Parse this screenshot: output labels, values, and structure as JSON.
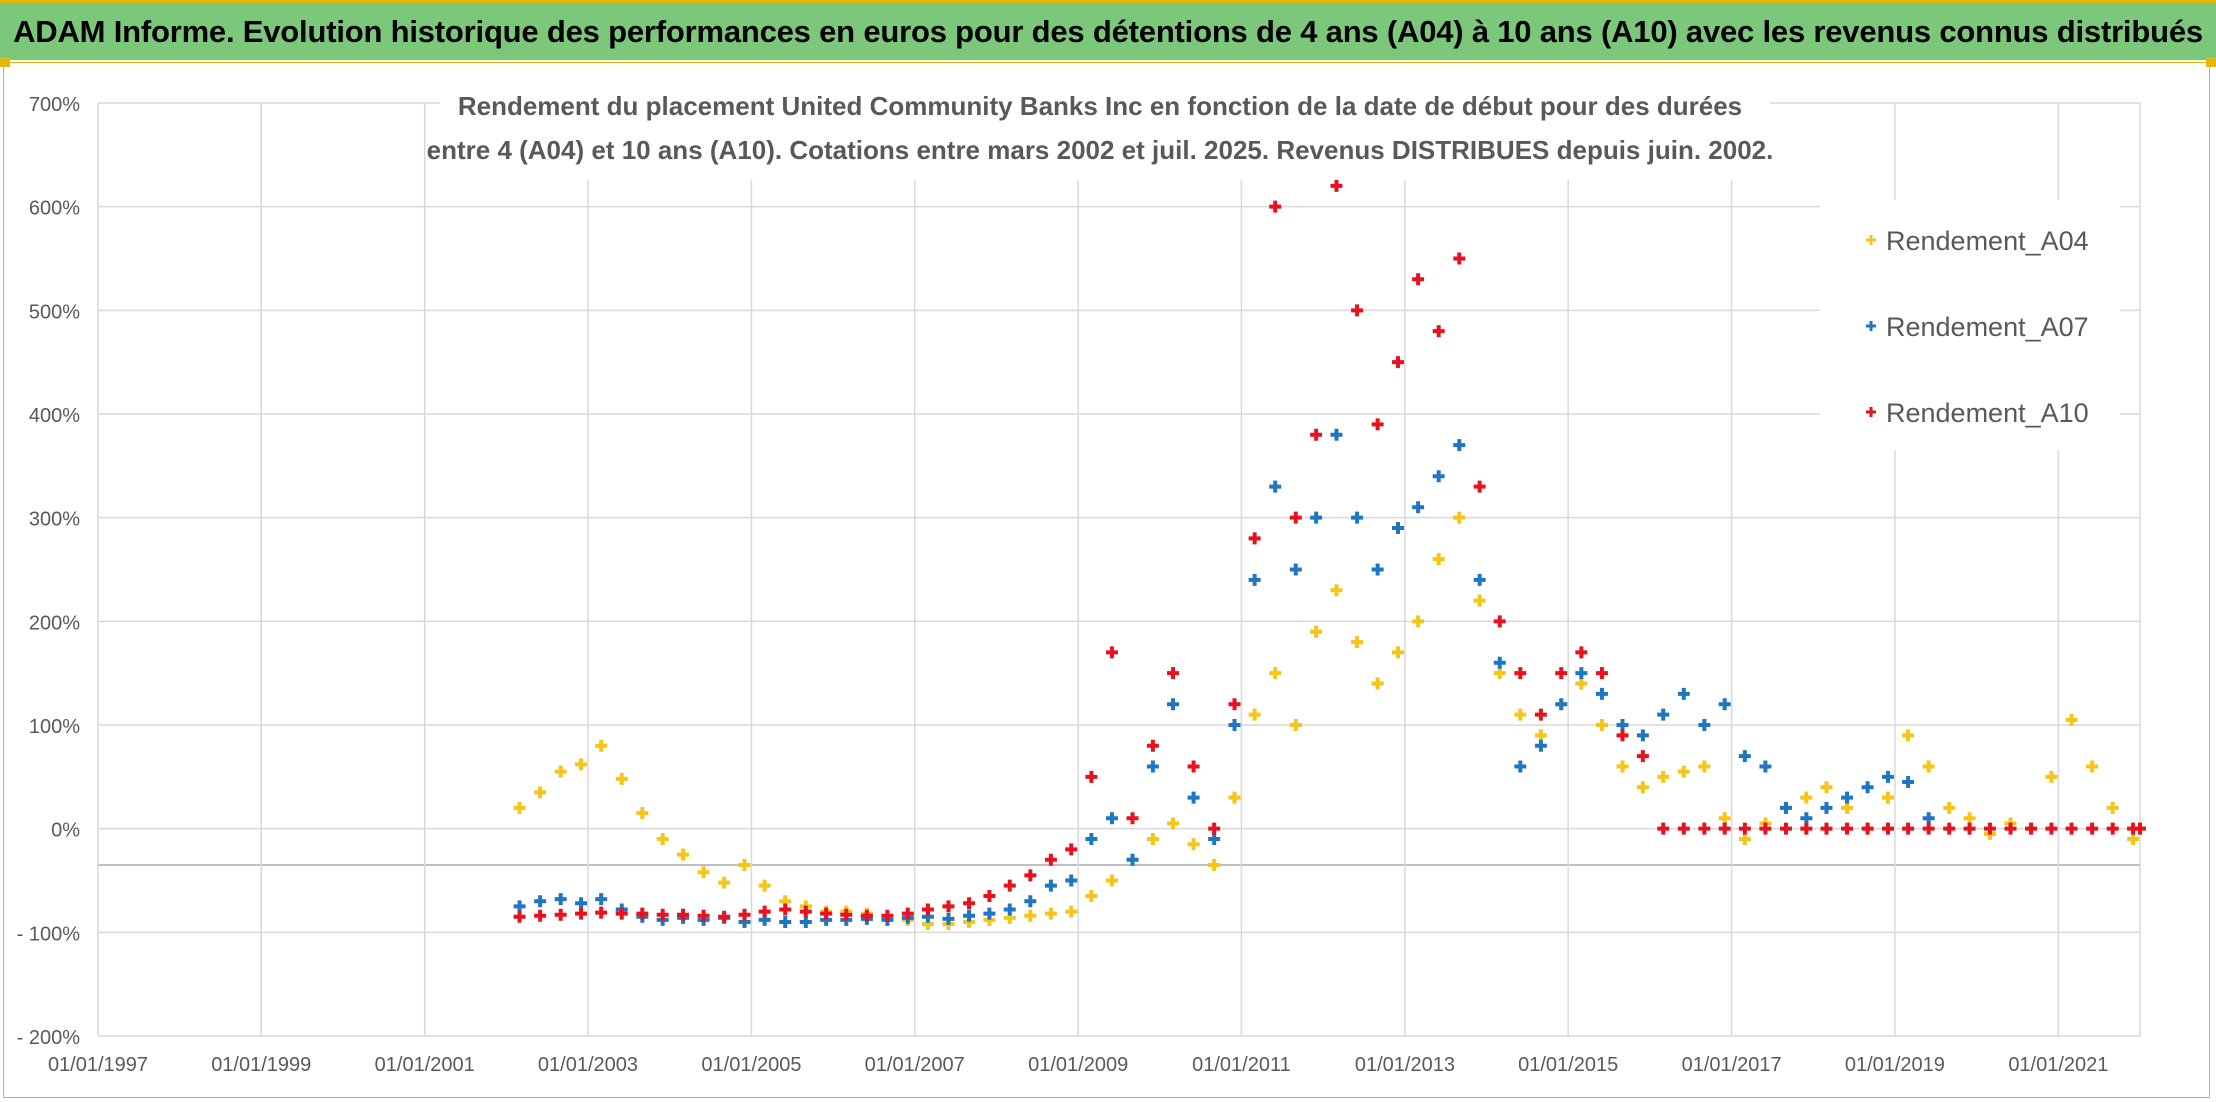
{
  "banner": {
    "title": "ADAM Informe. Evolution historique des performances en euros pour des détentions de 4 ans (A04) à 10 ans (A10) avec les revenus connus distribués"
  },
  "colors": {
    "banner_bg": "#7cc87b",
    "accent_border": "#e3b70d",
    "grid": "#d9d9d9",
    "axis_text": "#595959"
  },
  "chart_data": {
    "type": "scatter",
    "title_lines": [
      "Rendement du placement United Community Banks Inc en fonction de la date de début pour des durées",
      "entre 4 (A04) et 10 ans (A10). Cotations entre mars 2002 et juil. 2025. Revenus DISTRIBUES depuis juin. 2002."
    ],
    "marker": "+",
    "legend_position": "right",
    "grid": true,
    "xlim": [
      "1997-01-01",
      "2022-01-01"
    ],
    "ylim": [
      -200,
      700
    ],
    "y_unit": "%",
    "y_ticks": [
      "700%",
      "600%",
      "500%",
      "400%",
      "300%",
      "200%",
      "100%",
      "0%",
      "- 100%",
      "- 200%"
    ],
    "x_ticks": [
      "01/01/1997",
      "01/01/1999",
      "01/01/2001",
      "01/01/2003",
      "01/01/2005",
      "01/01/2007",
      "01/01/2009",
      "01/01/2011",
      "01/01/2013",
      "01/01/2015",
      "01/01/2017",
      "01/01/2019",
      "01/01/2021"
    ],
    "series": [
      {
        "name": "Rendement_A04",
        "color": "#f5c518",
        "points": [
          [
            "2002-03-01",
            20
          ],
          [
            "2002-06-01",
            35
          ],
          [
            "2002-09-01",
            55
          ],
          [
            "2002-12-01",
            62
          ],
          [
            "2003-03-01",
            80
          ],
          [
            "2003-06-01",
            48
          ],
          [
            "2003-09-01",
            15
          ],
          [
            "2003-12-01",
            -10
          ],
          [
            "2004-03-01",
            -25
          ],
          [
            "2004-06-01",
            -42
          ],
          [
            "2004-09-01",
            -52
          ],
          [
            "2004-12-01",
            -35
          ],
          [
            "2005-03-01",
            -55
          ],
          [
            "2005-06-01",
            -70
          ],
          [
            "2005-09-01",
            -75
          ],
          [
            "2005-12-01",
            -80
          ],
          [
            "2006-03-01",
            -80
          ],
          [
            "2006-06-01",
            -82
          ],
          [
            "2006-09-01",
            -85
          ],
          [
            "2006-12-01",
            -88
          ],
          [
            "2007-03-01",
            -92
          ],
          [
            "2007-06-01",
            -92
          ],
          [
            "2007-09-01",
            -90
          ],
          [
            "2007-12-01",
            -88
          ],
          [
            "2008-03-01",
            -86
          ],
          [
            "2008-06-01",
            -84
          ],
          [
            "2008-09-01",
            -82
          ],
          [
            "2008-12-01",
            -80
          ],
          [
            "2009-03-01",
            -65
          ],
          [
            "2009-06-01",
            -50
          ],
          [
            "2009-09-01",
            -30
          ],
          [
            "2009-12-01",
            -10
          ],
          [
            "2010-03-01",
            5
          ],
          [
            "2010-06-01",
            -15
          ],
          [
            "2010-09-01",
            -35
          ],
          [
            "2010-12-01",
            30
          ],
          [
            "2011-03-01",
            110
          ],
          [
            "2011-06-01",
            150
          ],
          [
            "2011-09-01",
            100
          ],
          [
            "2011-12-01",
            190
          ],
          [
            "2012-03-01",
            230
          ],
          [
            "2012-06-01",
            180
          ],
          [
            "2012-09-01",
            140
          ],
          [
            "2012-12-01",
            170
          ],
          [
            "2013-03-01",
            200
          ],
          [
            "2013-06-01",
            260
          ],
          [
            "2013-09-01",
            300
          ],
          [
            "2013-12-01",
            220
          ],
          [
            "2014-03-01",
            150
          ],
          [
            "2014-06-01",
            110
          ],
          [
            "2014-09-01",
            90
          ],
          [
            "2014-12-01",
            120
          ],
          [
            "2015-03-01",
            140
          ],
          [
            "2015-06-01",
            100
          ],
          [
            "2015-09-01",
            60
          ],
          [
            "2015-12-01",
            40
          ],
          [
            "2016-03-01",
            50
          ],
          [
            "2016-06-01",
            55
          ],
          [
            "2016-09-01",
            60
          ],
          [
            "2016-12-01",
            10
          ],
          [
            "2017-03-01",
            -10
          ],
          [
            "2017-06-01",
            5
          ],
          [
            "2017-09-01",
            20
          ],
          [
            "2017-12-01",
            30
          ],
          [
            "2018-03-01",
            40
          ],
          [
            "2018-06-01",
            20
          ],
          [
            "2018-09-01",
            0
          ],
          [
            "2018-12-01",
            30
          ],
          [
            "2019-03-01",
            90
          ],
          [
            "2019-06-01",
            60
          ],
          [
            "2019-09-01",
            20
          ],
          [
            "2019-12-01",
            10
          ],
          [
            "2020-03-01",
            -5
          ],
          [
            "2020-06-01",
            5
          ],
          [
            "2020-09-01",
            0
          ],
          [
            "2020-12-01",
            50
          ],
          [
            "2021-03-01",
            105
          ],
          [
            "2021-06-01",
            60
          ],
          [
            "2021-09-01",
            20
          ],
          [
            "2021-12-01",
            -10
          ],
          [
            "2022-01-01",
            0
          ]
        ]
      },
      {
        "name": "Rendement_A07",
        "color": "#1f77c4",
        "points": [
          [
            "2002-03-01",
            -75
          ],
          [
            "2002-06-01",
            -70
          ],
          [
            "2002-09-01",
            -68
          ],
          [
            "2002-12-01",
            -72
          ],
          [
            "2003-03-01",
            -68
          ],
          [
            "2003-06-01",
            -78
          ],
          [
            "2003-09-01",
            -85
          ],
          [
            "2003-12-01",
            -88
          ],
          [
            "2004-03-01",
            -86
          ],
          [
            "2004-06-01",
            -88
          ],
          [
            "2004-09-01",
            -86
          ],
          [
            "2004-12-01",
            -90
          ],
          [
            "2005-03-01",
            -88
          ],
          [
            "2005-06-01",
            -90
          ],
          [
            "2005-09-01",
            -90
          ],
          [
            "2005-12-01",
            -88
          ],
          [
            "2006-03-01",
            -88
          ],
          [
            "2006-06-01",
            -87
          ],
          [
            "2006-09-01",
            -88
          ],
          [
            "2006-12-01",
            -86
          ],
          [
            "2007-03-01",
            -85
          ],
          [
            "2007-06-01",
            -87
          ],
          [
            "2007-09-01",
            -84
          ],
          [
            "2007-12-01",
            -82
          ],
          [
            "2008-03-01",
            -78
          ],
          [
            "2008-06-01",
            -70
          ],
          [
            "2008-09-01",
            -55
          ],
          [
            "2008-12-01",
            -50
          ],
          [
            "2009-03-01",
            -10
          ],
          [
            "2009-06-01",
            10
          ],
          [
            "2009-09-01",
            -30
          ],
          [
            "2009-12-01",
            60
          ],
          [
            "2010-03-01",
            120
          ],
          [
            "2010-06-01",
            30
          ],
          [
            "2010-09-01",
            -10
          ],
          [
            "2010-12-01",
            100
          ],
          [
            "2011-03-01",
            240
          ],
          [
            "2011-06-01",
            330
          ],
          [
            "2011-09-01",
            250
          ],
          [
            "2011-12-01",
            300
          ],
          [
            "2012-03-01",
            380
          ],
          [
            "2012-06-01",
            300
          ],
          [
            "2012-09-01",
            250
          ],
          [
            "2012-12-01",
            290
          ],
          [
            "2013-03-01",
            310
          ],
          [
            "2013-06-01",
            340
          ],
          [
            "2013-09-01",
            370
          ],
          [
            "2013-12-01",
            240
          ],
          [
            "2014-03-01",
            160
          ],
          [
            "2014-06-01",
            60
          ],
          [
            "2014-09-01",
            80
          ],
          [
            "2014-12-01",
            120
          ],
          [
            "2015-03-01",
            150
          ],
          [
            "2015-06-01",
            130
          ],
          [
            "2015-09-01",
            100
          ],
          [
            "2015-12-01",
            90
          ],
          [
            "2016-03-01",
            110
          ],
          [
            "2016-06-01",
            130
          ],
          [
            "2016-09-01",
            100
          ],
          [
            "2016-12-01",
            120
          ],
          [
            "2017-03-01",
            70
          ],
          [
            "2017-06-01",
            60
          ],
          [
            "2017-09-01",
            20
          ],
          [
            "2017-12-01",
            10
          ],
          [
            "2018-03-01",
            20
          ],
          [
            "2018-06-01",
            30
          ],
          [
            "2018-09-01",
            40
          ],
          [
            "2018-12-01",
            50
          ],
          [
            "2019-03-01",
            45
          ],
          [
            "2019-06-01",
            10
          ]
        ]
      },
      {
        "name": "Rendement_A10",
        "color": "#e8121e",
        "points": [
          [
            "2002-03-01",
            -85
          ],
          [
            "2002-06-01",
            -84
          ],
          [
            "2002-09-01",
            -83
          ],
          [
            "2002-12-01",
            -82
          ],
          [
            "2003-03-01",
            -81
          ],
          [
            "2003-06-01",
            -82
          ],
          [
            "2003-09-01",
            -82
          ],
          [
            "2003-12-01",
            -83
          ],
          [
            "2004-03-01",
            -83
          ],
          [
            "2004-06-01",
            -84
          ],
          [
            "2004-09-01",
            -85
          ],
          [
            "2004-12-01",
            -83
          ],
          [
            "2005-03-01",
            -80
          ],
          [
            "2005-06-01",
            -78
          ],
          [
            "2005-09-01",
            -80
          ],
          [
            "2005-12-01",
            -82
          ],
          [
            "2006-03-01",
            -83
          ],
          [
            "2006-06-01",
            -84
          ],
          [
            "2006-09-01",
            -84
          ],
          [
            "2006-12-01",
            -82
          ],
          [
            "2007-03-01",
            -78
          ],
          [
            "2007-06-01",
            -75
          ],
          [
            "2007-09-01",
            -72
          ],
          [
            "2007-12-01",
            -65
          ],
          [
            "2008-03-01",
            -55
          ],
          [
            "2008-06-01",
            -45
          ],
          [
            "2008-09-01",
            -30
          ],
          [
            "2008-12-01",
            -20
          ],
          [
            "2009-03-01",
            50
          ],
          [
            "2009-06-01",
            170
          ],
          [
            "2009-09-01",
            10
          ],
          [
            "2009-12-01",
            80
          ],
          [
            "2010-03-01",
            150
          ],
          [
            "2010-06-01",
            60
          ],
          [
            "2010-09-01",
            0
          ],
          [
            "2010-12-01",
            120
          ],
          [
            "2011-03-01",
            280
          ],
          [
            "2011-06-01",
            600
          ],
          [
            "2011-09-01",
            300
          ],
          [
            "2011-12-01",
            380
          ],
          [
            "2012-03-01",
            620
          ],
          [
            "2012-06-01",
            500
          ],
          [
            "2012-09-01",
            390
          ],
          [
            "2012-12-01",
            450
          ],
          [
            "2013-03-01",
            530
          ],
          [
            "2013-06-01",
            480
          ],
          [
            "2013-09-01",
            550
          ],
          [
            "2013-12-01",
            330
          ],
          [
            "2014-03-01",
            200
          ],
          [
            "2014-06-01",
            150
          ],
          [
            "2014-09-01",
            110
          ],
          [
            "2014-12-01",
            150
          ],
          [
            "2015-03-01",
            170
          ],
          [
            "2015-06-01",
            150
          ],
          [
            "2015-09-01",
            90
          ],
          [
            "2015-12-01",
            70
          ],
          [
            "2016-03-01",
            0
          ],
          [
            "2016-06-01",
            0
          ],
          [
            "2016-09-01",
            0
          ],
          [
            "2016-12-01",
            0
          ],
          [
            "2017-03-01",
            0
          ],
          [
            "2017-06-01",
            0
          ],
          [
            "2017-09-01",
            0
          ],
          [
            "2017-12-01",
            0
          ],
          [
            "2018-03-01",
            0
          ],
          [
            "2018-06-01",
            0
          ],
          [
            "2018-09-01",
            0
          ],
          [
            "2018-12-01",
            0
          ],
          [
            "2019-03-01",
            0
          ],
          [
            "2019-06-01",
            0
          ],
          [
            "2019-09-01",
            0
          ],
          [
            "2019-12-01",
            0
          ],
          [
            "2020-03-01",
            0
          ],
          [
            "2020-06-01",
            0
          ],
          [
            "2020-09-01",
            0
          ],
          [
            "2020-12-01",
            0
          ],
          [
            "2021-03-01",
            0
          ],
          [
            "2021-06-01",
            0
          ],
          [
            "2021-09-01",
            0
          ],
          [
            "2021-12-01",
            0
          ],
          [
            "2022-01-01",
            0
          ]
        ]
      }
    ]
  }
}
